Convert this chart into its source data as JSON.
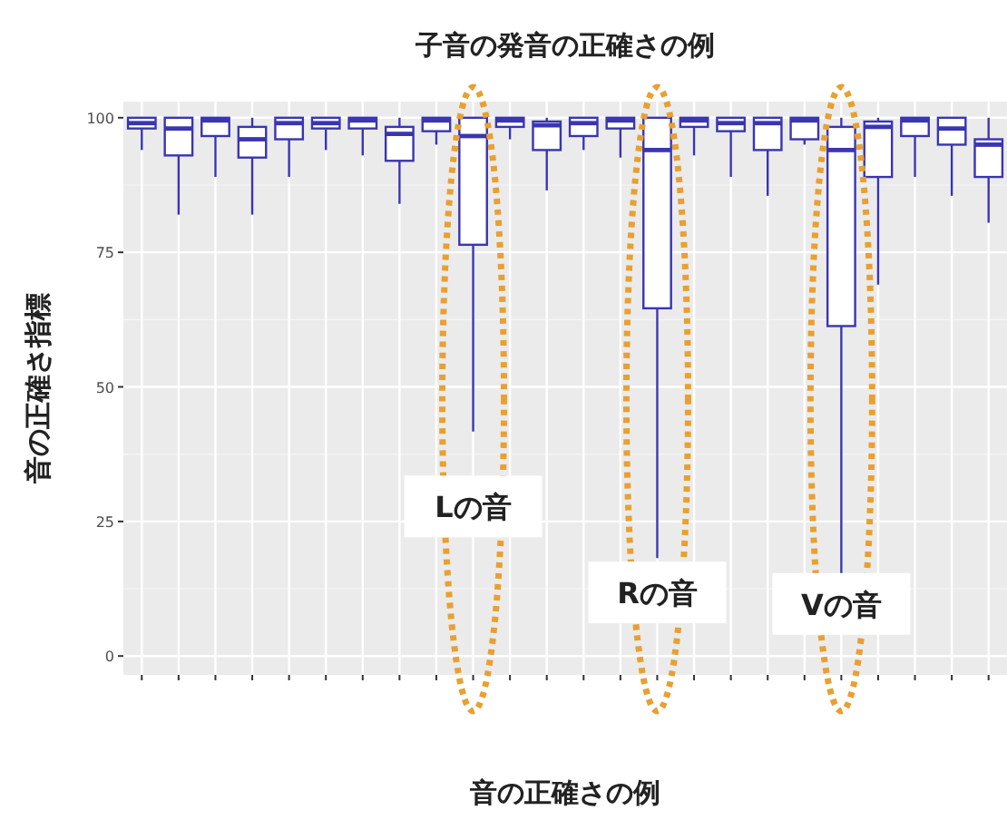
{
  "chart_data": {
    "type": "box",
    "title": "子音の発音の正確さの例",
    "xlabel": "音の正確さの例",
    "ylabel": "音の正確さ指標",
    "categories": [
      null,
      null,
      null,
      null,
      null,
      null,
      null,
      null,
      null,
      null,
      null,
      null,
      null,
      null,
      null,
      null,
      null,
      null,
      null,
      null,
      null,
      null,
      null,
      null
    ],
    "color": "#3a35b0",
    "ylim": [
      -3.5,
      103
    ],
    "yticks": [
      0,
      25,
      50,
      75,
      100
    ],
    "grid": true,
    "boxes": [
      {
        "low": 94,
        "q1": 98,
        "median": 99,
        "q3": 100,
        "high": 100
      },
      {
        "low": 82,
        "q1": 93,
        "median": 98,
        "q3": 100,
        "high": 100
      },
      {
        "low": 89,
        "q1": 96.6,
        "median": 99.5,
        "q3": 100,
        "high": 100
      },
      {
        "low": 82,
        "q1": 92.6,
        "median": 96,
        "q3": 98.3,
        "high": 100
      },
      {
        "low": 89,
        "q1": 96,
        "median": 99,
        "q3": 100,
        "high": 100
      },
      {
        "low": 94,
        "q1": 98,
        "median": 99,
        "q3": 100,
        "high": 100
      },
      {
        "low": 93,
        "q1": 98,
        "median": 99.5,
        "q3": 100,
        "high": 100
      },
      {
        "low": 84,
        "q1": 92,
        "median": 97,
        "q3": 98.3,
        "high": 100
      },
      {
        "low": 95,
        "q1": 97.5,
        "median": 99.5,
        "q3": 100,
        "high": 100
      },
      {
        "low": 41.7,
        "q1": 76.4,
        "median": 96.6,
        "q3": 100,
        "high": 100
      },
      {
        "low": 96,
        "q1": 98.3,
        "median": 99.5,
        "q3": 100,
        "high": 100
      },
      {
        "low": 86.5,
        "q1": 94,
        "median": 98.6,
        "q3": 99.3,
        "high": 100
      },
      {
        "low": 94,
        "q1": 96.6,
        "median": 99,
        "q3": 100,
        "high": 100
      },
      {
        "low": 92.6,
        "q1": 98,
        "median": 99.5,
        "q3": 100,
        "high": 100
      },
      {
        "low": 18.2,
        "q1": 64.6,
        "median": 94,
        "q3": 100,
        "high": 100
      },
      {
        "low": 93,
        "q1": 98.3,
        "median": 99.5,
        "q3": 100,
        "high": 100
      },
      {
        "low": 89,
        "q1": 97.5,
        "median": 99,
        "q3": 100,
        "high": 100
      },
      {
        "low": 85.5,
        "q1": 94,
        "median": 99,
        "q3": 100,
        "high": 100
      },
      {
        "low": 95,
        "q1": 96,
        "median": 99.5,
        "q3": 100,
        "high": 100
      },
      {
        "low": 11.8,
        "q1": 61.3,
        "median": 94,
        "q3": 98.3,
        "high": 100
      },
      {
        "low": 69,
        "q1": 89,
        "median": 98.3,
        "q3": 99.3,
        "high": 100
      },
      {
        "low": 89,
        "q1": 96.6,
        "median": 99.5,
        "q3": 100,
        "high": 100
      },
      {
        "low": 85.5,
        "q1": 95,
        "median": 98,
        "q3": 100,
        "high": 100
      },
      {
        "low": 80.5,
        "q1": 89,
        "median": 95,
        "q3": 96,
        "high": 100
      }
    ],
    "annotations": [
      "Lの音",
      "Rの音",
      "Vの音"
    ]
  }
}
